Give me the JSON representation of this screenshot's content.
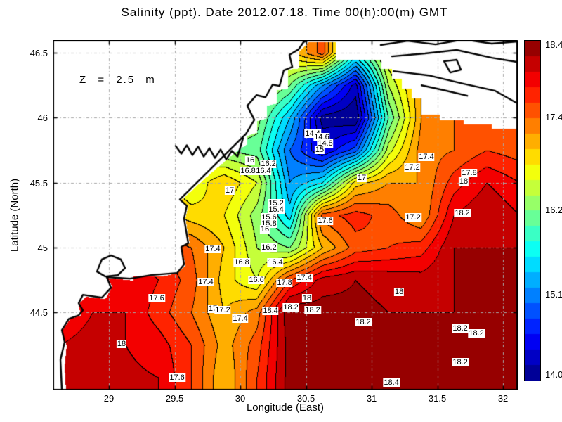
{
  "title": "Salinity (ppt). Date 2012.07.18. Time 00(h):00(m) GMT",
  "annotation": "Z = 2.5 m",
  "axes": {
    "xlabel": "Longitude (East)",
    "ylabel": "Latitude (North)",
    "xtick_labels": [
      "29",
      "29.5",
      "30",
      "30.5",
      "31",
      "31.5",
      "32"
    ],
    "ytick_labels": [
      "44.5",
      "45",
      "45.5",
      "46",
      "46.5"
    ],
    "xlim": [
      28.572,
      32.112
    ],
    "ylim": [
      43.9,
      46.598
    ],
    "grid": "on",
    "grid_color": "#a8a8a8"
  },
  "colorbar": {
    "min": 14.0,
    "max": 18.4,
    "tick_labels": [
      "18.4",
      "17.4",
      "16.2",
      "15.1",
      "14.0"
    ],
    "band_step": 0.2,
    "colormap": "jet"
  },
  "chart_data": {
    "type": "heatmap",
    "variable": "Salinity (ppt)",
    "depth": "2.5 m",
    "date": "2012.07.18",
    "time": "00(h):00(m) GMT",
    "contour_interval": 0.2,
    "lon": [
      28.625,
      28.875,
      29.125,
      29.375,
      29.625,
      29.875,
      30.125,
      30.375,
      30.625,
      30.875,
      31.125,
      31.375,
      31.625,
      31.875,
      32.125
    ],
    "lat": [
      46.5,
      46.25,
      46.0,
      45.75,
      45.5,
      45.25,
      45.0,
      44.75,
      44.5,
      44.25,
      44.0
    ],
    "values": [
      [
        17.4,
        17.3,
        17.2,
        17.1,
        17.0,
        16.8,
        16.8,
        16.9,
        17.5,
        15.8,
        16.8,
        17.2,
        17.3,
        17.4,
        17.4
      ],
      [
        17.3,
        17.2,
        17.1,
        17.0,
        16.8,
        16.6,
        16.6,
        16.2,
        15.2,
        14.3,
        16.4,
        17.2,
        17.3,
        17.4,
        17.4
      ],
      [
        17.2,
        17.1,
        17.0,
        16.9,
        16.6,
        16.4,
        16.3,
        15.4,
        14.1,
        14.0,
        16.0,
        17.2,
        17.4,
        17.5,
        17.6
      ],
      [
        17.2,
        17.1,
        17.0,
        16.8,
        16.5,
        16.2,
        16.1,
        15.0,
        14.4,
        14.9,
        16.5,
        17.3,
        17.4,
        17.6,
        17.5
      ],
      [
        17.3,
        17.2,
        17.1,
        16.9,
        16.6,
        17.0,
        16.6,
        15.2,
        15.6,
        16.9,
        17.2,
        17.2,
        17.7,
        18.0,
        17.8
      ],
      [
        17.4,
        17.4,
        17.3,
        17.1,
        16.9,
        16.8,
        16.3,
        15.5,
        17.5,
        17.7,
        17.5,
        17.2,
        18.0,
        18.2,
        18.0
      ],
      [
        17.6,
        17.7,
        17.8,
        17.6,
        17.4,
        17.0,
        16.4,
        16.2,
        17.0,
        17.5,
        17.6,
        17.7,
        18.2,
        18.2,
        18.2
      ],
      [
        17.8,
        17.9,
        18.0,
        17.8,
        17.5,
        16.9,
        16.6,
        17.6,
        18.1,
        18.2,
        18.15,
        18.1,
        18.2,
        18.3,
        18.2
      ],
      [
        17.9,
        18.0,
        18.0,
        17.7,
        17.4,
        17.0,
        17.3,
        18.4,
        18.3,
        18.25,
        18.2,
        18.2,
        18.2,
        18.25,
        18.2
      ],
      [
        18.0,
        18.05,
        18.0,
        17.9,
        17.6,
        17.1,
        17.5,
        18.3,
        18.4,
        18.3,
        18.25,
        18.2,
        18.25,
        18.3,
        18.25
      ],
      [
        18.0,
        18.1,
        18.05,
        18.0,
        17.6,
        17.0,
        17.6,
        18.3,
        18.4,
        18.35,
        18.35,
        18.3,
        18.25,
        18.3,
        18.3
      ]
    ],
    "contour_labels": [
      {
        "lon": 30.551,
        "lat": 45.875,
        "text": "14.4"
      },
      {
        "lon": 30.62,
        "lat": 45.848,
        "text": "14.6"
      },
      {
        "lon": 30.647,
        "lat": 45.804,
        "text": "14.8"
      },
      {
        "lon": 30.604,
        "lat": 45.755,
        "text": "15"
      },
      {
        "lon": 30.075,
        "lat": 45.674,
        "text": "16"
      },
      {
        "lon": 30.214,
        "lat": 45.647,
        "text": "16.2"
      },
      {
        "lon": 30.059,
        "lat": 45.592,
        "text": "16.8"
      },
      {
        "lon": 30.176,
        "lat": 45.592,
        "text": "16.4"
      },
      {
        "lon": 29.92,
        "lat": 45.44,
        "text": "17"
      },
      {
        "lon": 30.925,
        "lat": 45.538,
        "text": "17"
      },
      {
        "lon": 31.417,
        "lat": 45.696,
        "text": "17.4"
      },
      {
        "lon": 31.31,
        "lat": 45.62,
        "text": "17.2"
      },
      {
        "lon": 31.743,
        "lat": 45.576,
        "text": "17.8"
      },
      {
        "lon": 31.7,
        "lat": 45.511,
        "text": "18"
      },
      {
        "lon": 30.273,
        "lat": 45.342,
        "text": "15.2"
      },
      {
        "lon": 30.273,
        "lat": 45.293,
        "text": "15.4"
      },
      {
        "lon": 30.219,
        "lat": 45.234,
        "text": "15.6"
      },
      {
        "lon": 30.219,
        "lat": 45.185,
        "text": "15.8"
      },
      {
        "lon": 30.187,
        "lat": 45.141,
        "text": "16"
      },
      {
        "lon": 30.647,
        "lat": 45.207,
        "text": "17.6"
      },
      {
        "lon": 31.316,
        "lat": 45.234,
        "text": "17.2"
      },
      {
        "lon": 31.69,
        "lat": 45.266,
        "text": "18.2"
      },
      {
        "lon": 29.791,
        "lat": 44.989,
        "text": "17.4"
      },
      {
        "lon": 30.219,
        "lat": 45.0,
        "text": "16.2"
      },
      {
        "lon": 30.011,
        "lat": 44.886,
        "text": "16.8"
      },
      {
        "lon": 30.267,
        "lat": 44.886,
        "text": "16.4"
      },
      {
        "lon": 30.123,
        "lat": 44.75,
        "text": "16.6"
      },
      {
        "lon": 29.738,
        "lat": 44.734,
        "text": "17.4"
      },
      {
        "lon": 30.337,
        "lat": 44.728,
        "text": "17.8"
      },
      {
        "lon": 30.487,
        "lat": 44.766,
        "text": "17.4"
      },
      {
        "lon": 29.364,
        "lat": 44.609,
        "text": "17.6"
      },
      {
        "lon": 30.508,
        "lat": 44.609,
        "text": "18"
      },
      {
        "lon": 30.385,
        "lat": 44.538,
        "text": "18.2"
      },
      {
        "lon": 30.551,
        "lat": 44.516,
        "text": "18.2"
      },
      {
        "lon": 30.23,
        "lat": 44.511,
        "text": "18.4"
      },
      {
        "lon": 29.791,
        "lat": 44.527,
        "text": "17"
      },
      {
        "lon": 29.866,
        "lat": 44.516,
        "text": "17.2"
      },
      {
        "lon": 30.0,
        "lat": 44.451,
        "text": "17.4"
      },
      {
        "lon": 31.209,
        "lat": 44.658,
        "text": "18"
      },
      {
        "lon": 30.936,
        "lat": 44.424,
        "text": "18.2"
      },
      {
        "lon": 29.096,
        "lat": 44.255,
        "text": "18"
      },
      {
        "lon": 31.674,
        "lat": 44.375,
        "text": "18.2"
      },
      {
        "lon": 31.797,
        "lat": 44.337,
        "text": "18.2"
      },
      {
        "lon": 31.674,
        "lat": 44.114,
        "text": "18.2"
      },
      {
        "lon": 31.15,
        "lat": 43.962,
        "text": "18.4"
      },
      {
        "lon": 29.519,
        "lat": 44.0,
        "text": "17.6"
      }
    ],
    "data_region_boundary": [
      [
        30.524,
        46.582
      ],
      [
        30.727,
        46.582
      ],
      [
        30.727,
        46.446
      ],
      [
        31.075,
        46.446
      ],
      [
        31.075,
        46.375
      ],
      [
        31.155,
        46.375
      ],
      [
        31.155,
        46.299
      ],
      [
        31.23,
        46.299
      ],
      [
        31.23,
        46.223
      ],
      [
        31.305,
        46.223
      ],
      [
        31.305,
        46.147
      ],
      [
        31.38,
        46.147
      ],
      [
        31.38,
        46.022
      ],
      [
        31.519,
        46.022
      ],
      [
        31.519,
        45.978
      ],
      [
        31.701,
        45.978
      ],
      [
        31.701,
        45.946
      ],
      [
        31.914,
        45.946
      ],
      [
        31.914,
        45.913
      ],
      [
        32.2,
        45.913
      ],
      [
        32.2,
        43.8
      ],
      [
        28.679,
        43.8
      ],
      [
        28.663,
        44.082
      ],
      [
        28.679,
        44.245
      ],
      [
        28.642,
        44.353
      ],
      [
        28.706,
        44.451
      ],
      [
        28.786,
        44.473
      ],
      [
        28.77,
        44.56
      ],
      [
        28.823,
        44.62
      ],
      [
        28.973,
        44.603
      ],
      [
        29.027,
        44.701
      ],
      [
        28.984,
        44.766
      ],
      [
        29.187,
        44.745
      ],
      [
        29.187,
        44.777
      ],
      [
        29.401,
        44.777
      ],
      [
        29.519,
        44.799
      ],
      [
        29.583,
        44.864
      ],
      [
        29.551,
        45.005
      ],
      [
        29.615,
        45.033
      ],
      [
        29.583,
        45.223
      ],
      [
        29.604,
        45.321
      ],
      [
        29.551,
        45.364
      ],
      [
        29.775,
        45.571
      ],
      [
        29.989,
        45.755
      ],
      [
        30.053,
        45.793
      ],
      [
        30.053,
        45.859
      ],
      [
        30.128,
        45.886
      ],
      [
        30.128,
        45.973
      ],
      [
        30.203,
        45.995
      ],
      [
        30.203,
        46.092
      ],
      [
        30.278,
        46.109
      ],
      [
        30.278,
        46.212
      ],
      [
        30.363,
        46.223
      ],
      [
        30.363,
        46.37
      ],
      [
        30.449,
        46.38
      ],
      [
        30.449,
        46.511
      ],
      [
        30.524,
        46.582
      ]
    ],
    "coastlines": [
      [
        [
          28.642,
          43.902
        ],
        [
          28.631,
          44.136
        ],
        [
          28.663,
          44.272
        ],
        [
          28.642,
          44.364
        ],
        [
          28.695,
          44.451
        ],
        [
          28.77,
          44.478
        ],
        [
          28.802,
          44.516
        ],
        [
          28.77,
          44.571
        ],
        [
          28.802,
          44.636
        ],
        [
          28.946,
          44.614
        ],
        [
          29.016,
          44.69
        ],
        [
          28.984,
          44.772
        ],
        [
          29.16,
          44.761
        ],
        [
          29.321,
          44.788
        ],
        [
          29.519,
          44.804
        ],
        [
          29.572,
          44.87
        ],
        [
          29.551,
          45.005
        ],
        [
          29.604,
          45.033
        ],
        [
          29.572,
          45.223
        ],
        [
          29.593,
          45.321
        ],
        [
          29.54,
          45.37
        ],
        [
          30.043,
          45.875
        ],
        [
          30.107,
          45.984
        ],
        [
          30.053,
          46.092
        ],
        [
          30.123,
          46.174
        ],
        [
          30.192,
          46.158
        ],
        [
          30.246,
          46.255
        ],
        [
          30.299,
          46.245
        ],
        [
          30.331,
          46.364
        ],
        [
          30.396,
          46.391
        ],
        [
          30.374,
          46.484
        ],
        [
          30.444,
          46.527
        ],
        [
          30.481,
          46.582
        ],
        [
          30.55,
          46.609
        ]
      ],
      [
        [
          29.508,
          45.783
        ],
        [
          29.551,
          45.723
        ],
        [
          29.593,
          45.788
        ],
        [
          29.636,
          45.712
        ],
        [
          29.679,
          45.777
        ],
        [
          29.722,
          45.701
        ],
        [
          29.765,
          45.766
        ],
        [
          29.807,
          45.69
        ],
        [
          29.85,
          45.755
        ],
        [
          29.893,
          45.679
        ],
        [
          29.936,
          45.745
        ],
        [
          29.979,
          45.701
        ],
        [
          30.021,
          45.842
        ]
      ],
      [
        [
          28.909,
          44.815
        ],
        [
          28.946,
          44.908
        ],
        [
          29.016,
          44.94
        ],
        [
          29.091,
          44.908
        ],
        [
          29.123,
          44.842
        ],
        [
          29.069,
          44.788
        ],
        [
          28.973,
          44.777
        ],
        [
          28.909,
          44.815
        ]
      ],
      [
        [
          31.069,
          46.56
        ],
        [
          31.273,
          46.592
        ],
        [
          31.487,
          46.565
        ],
        [
          31.701,
          46.603
        ],
        [
          31.914,
          46.571
        ],
        [
          32.112,
          46.587
        ]
      ],
      [
        [
          31.155,
          46.473
        ],
        [
          31.406,
          46.495
        ],
        [
          31.647,
          46.522
        ],
        [
          31.914,
          46.462
        ],
        [
          32.112,
          46.429
        ]
      ],
      [
        [
          31.166,
          46.359
        ],
        [
          31.433,
          46.326
        ],
        [
          31.701,
          46.261
        ],
        [
          31.941,
          46.207
        ],
        [
          32.112,
          46.109
        ]
      ],
      [
        [
          31.551,
          46.435
        ],
        [
          31.647,
          46.446
        ],
        [
          31.679,
          46.37
        ],
        [
          31.599,
          46.348
        ],
        [
          31.551,
          46.435
        ]
      ],
      [
        [
          31.38,
          46.25
        ],
        [
          31.551,
          46.212
        ],
        [
          31.728,
          46.169
        ]
      ]
    ]
  }
}
